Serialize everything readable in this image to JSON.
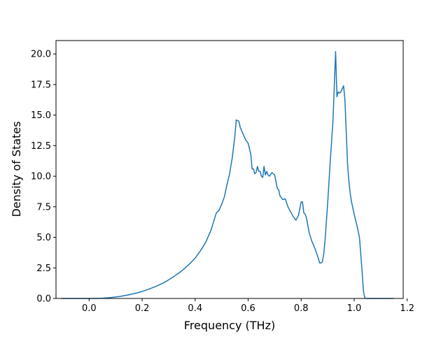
{
  "chart_data": {
    "type": "line",
    "title": "",
    "xlabel": "Frequency (THz)",
    "ylabel": "Density of States",
    "xlim": [
      -0.125,
      1.185
    ],
    "ylim": [
      0,
      21.1
    ],
    "x_ticks": [
      0.0,
      0.2,
      0.4,
      0.6,
      0.8,
      1.0,
      1.2
    ],
    "x_tick_labels": [
      "0.0",
      "0.2",
      "0.4",
      "0.6",
      "0.8",
      "1.0",
      "1.2"
    ],
    "y_ticks": [
      0.0,
      2.5,
      5.0,
      7.5,
      10.0,
      12.5,
      15.0,
      17.5,
      20.0
    ],
    "y_tick_labels": [
      "0.0",
      "2.5",
      "5.0",
      "7.5",
      "10.0",
      "12.5",
      "15.0",
      "17.5",
      "20.0"
    ],
    "grid": false,
    "legend": "none",
    "line_color": "#1f77b4",
    "series": [
      {
        "x": [
          -0.105,
          -0.05,
          0.0,
          0.02,
          0.05,
          0.08,
          0.1,
          0.12,
          0.15,
          0.18,
          0.2,
          0.22,
          0.25,
          0.28,
          0.3,
          0.32,
          0.34,
          0.36,
          0.38,
          0.4,
          0.42,
          0.44,
          0.46,
          0.47,
          0.48,
          0.49,
          0.5,
          0.51,
          0.52,
          0.53,
          0.54,
          0.55,
          0.555,
          0.565,
          0.57,
          0.58,
          0.59,
          0.6,
          0.61,
          0.615,
          0.62,
          0.625,
          0.63,
          0.635,
          0.64,
          0.645,
          0.65,
          0.655,
          0.66,
          0.665,
          0.67,
          0.675,
          0.68,
          0.69,
          0.7,
          0.71,
          0.715,
          0.72,
          0.73,
          0.74,
          0.75,
          0.76,
          0.77,
          0.78,
          0.79,
          0.8,
          0.805,
          0.81,
          0.815,
          0.82,
          0.83,
          0.84,
          0.85,
          0.86,
          0.87,
          0.875,
          0.88,
          0.885,
          0.89,
          0.9,
          0.91,
          0.92,
          0.93,
          0.935,
          0.94,
          0.945,
          0.95,
          0.96,
          0.965,
          0.97,
          0.975,
          0.98,
          0.985,
          0.99,
          1.0,
          1.01,
          1.02,
          1.03,
          1.035,
          1.04,
          1.045,
          1.05,
          1.07,
          1.1,
          1.15
        ],
        "y": [
          0.0,
          0.0,
          0.0,
          0.0,
          0.02,
          0.07,
          0.12,
          0.18,
          0.3,
          0.45,
          0.57,
          0.72,
          0.97,
          1.27,
          1.52,
          1.8,
          2.1,
          2.45,
          2.85,
          3.3,
          3.9,
          4.6,
          5.6,
          6.3,
          7.0,
          7.2,
          7.7,
          8.3,
          9.3,
          10.2,
          11.5,
          13.3,
          14.6,
          14.5,
          14.0,
          13.5,
          13.0,
          12.7,
          11.8,
          10.6,
          10.6,
          10.2,
          10.3,
          10.8,
          10.4,
          10.4,
          10.0,
          9.9,
          10.8,
          10.1,
          10.4,
          10.1,
          10.0,
          10.3,
          10.1,
          9.0,
          8.9,
          8.4,
          8.1,
          8.15,
          7.5,
          7.1,
          6.7,
          6.4,
          6.8,
          7.9,
          7.9,
          7.0,
          6.9,
          6.6,
          5.4,
          4.7,
          4.2,
          3.6,
          2.9,
          2.9,
          3.0,
          3.6,
          4.7,
          7.8,
          11.3,
          14.5,
          20.2,
          16.5,
          16.9,
          16.8,
          16.9,
          17.4,
          16.3,
          13.7,
          11.0,
          9.6,
          8.6,
          7.9,
          6.9,
          6.0,
          5.0,
          2.2,
          0.6,
          0.05,
          0.0,
          0.0,
          0.0,
          0.0,
          0.0
        ]
      }
    ]
  }
}
